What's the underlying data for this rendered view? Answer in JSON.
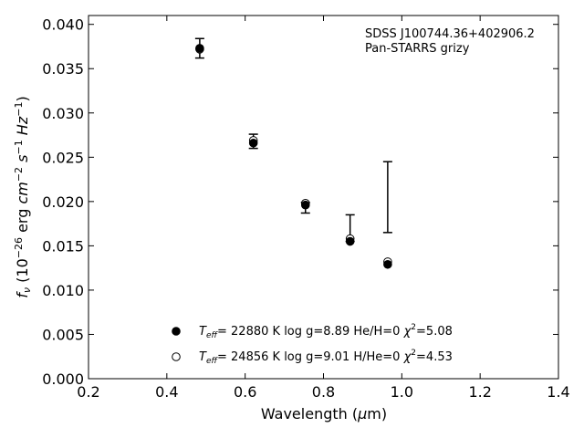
{
  "chart_data": {
    "type": "scatter",
    "annotation_lines": [
      "SDSS J100744.36+402906.2",
      "Pan-STARRS grizy"
    ],
    "xlabel": "Wavelength (μm)",
    "ylabel": "f_ν (10^-26 erg cm^-2 s^-1 Hz^-1)",
    "xlim": [
      0.2,
      1.4
    ],
    "ylim": [
      0.0,
      0.041
    ],
    "xticks": [
      "0.2",
      "0.4",
      "0.6",
      "0.8",
      "1.0",
      "1.2",
      "1.4"
    ],
    "yticks": [
      "0.000",
      "0.005",
      "0.010",
      "0.015",
      "0.020",
      "0.025",
      "0.030",
      "0.035",
      "0.040"
    ],
    "observed": {
      "x": [
        0.484,
        0.621,
        0.754,
        0.868,
        0.964
      ],
      "y": [
        0.0373,
        0.0268,
        0.0197,
        0.0155,
        0.0131
      ],
      "err_low": [
        0.0362,
        0.026,
        0.0187,
        0.0155,
        0.0165
      ],
      "err_high": [
        0.0384,
        0.0276,
        0.0199,
        0.0185,
        0.0245
      ]
    },
    "series": [
      {
        "name": "T_eff= 22880 K  log g=8.89  He/H=0  χ²=5.08",
        "marker": "filled-circle",
        "x": [
          0.484,
          0.621,
          0.754,
          0.868,
          0.964
        ],
        "y": [
          0.0373,
          0.0266,
          0.0196,
          0.0155,
          0.0129
        ]
      },
      {
        "name": "T_eff= 24856 K  log g=9.01  H/He=0  χ²=4.53",
        "marker": "open-circle",
        "x": [
          0.484,
          0.621,
          0.754,
          0.868,
          0.964
        ],
        "y": [
          0.0372,
          0.0269,
          0.0198,
          0.0158,
          0.0132
        ]
      }
    ],
    "legend": [
      {
        "teff": "22880",
        "logg": "8.89",
        "comp": "He/H=0",
        "chi": "5.08"
      },
      {
        "teff": "24856",
        "logg": "9.01",
        "comp": "H/He=0",
        "chi": "4.53"
      }
    ],
    "legend_position": "lower-center",
    "grid": false
  }
}
